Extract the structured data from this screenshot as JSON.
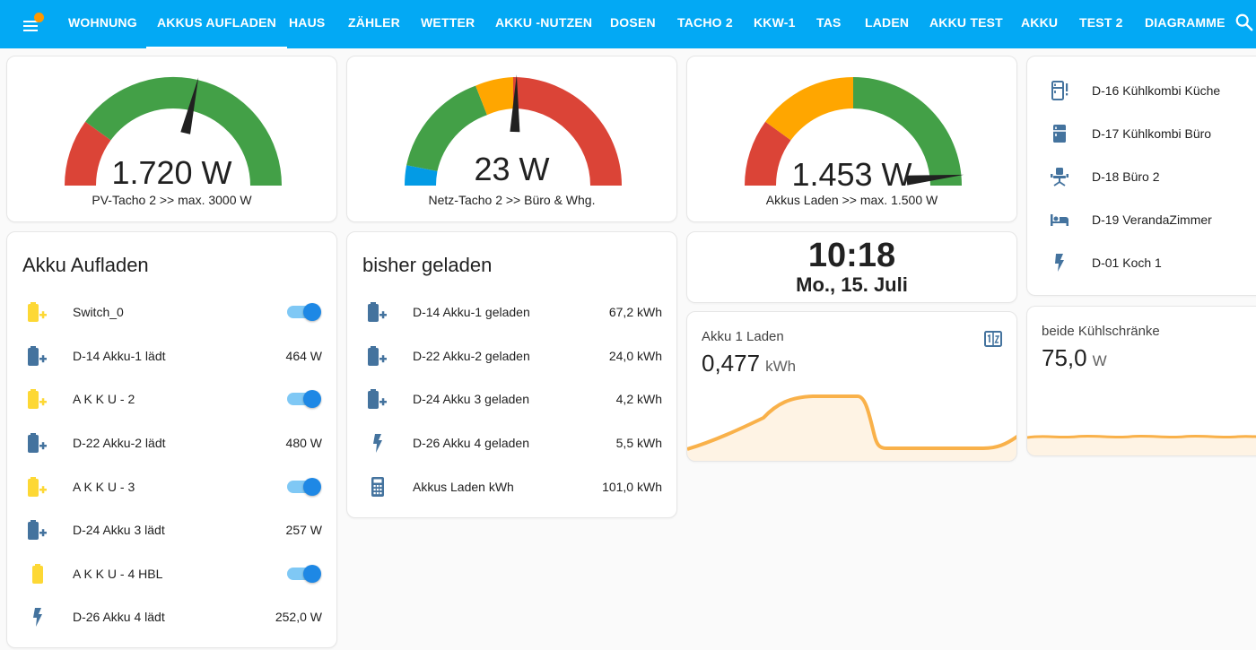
{
  "nav": {
    "tabs": [
      {
        "label": "WOHNUNG"
      },
      {
        "label": "AKKUS AUFLADEN"
      },
      {
        "label": "HAUS"
      },
      {
        "label": "ZÄHLER"
      },
      {
        "label": "WETTER"
      },
      {
        "label": "AKKU -NUTZEN"
      },
      {
        "label": "DOSEN"
      },
      {
        "label": "TACHO 2"
      },
      {
        "label": "KKW-1"
      },
      {
        "label": "TAS"
      },
      {
        "label": "LADEN"
      },
      {
        "label": "AKKU TEST"
      },
      {
        "label": "AKKU"
      },
      {
        "label": "TEST 2"
      },
      {
        "label": "DIAGRAMME"
      }
    ],
    "active_tab": "AKKUS AUFLADEN"
  },
  "gauges": [
    {
      "value": "1.720 W",
      "label": "PV-Tacho 2 >> max. 3000 W",
      "level": 0.573
    },
    {
      "value": "23 W",
      "label": "Netz-Tacho 2 >> Büro & Whg.",
      "level": 0.51
    },
    {
      "value": "1.453 W",
      "label": "Akkus Laden >> max. 1.500 W",
      "level": 0.969
    }
  ],
  "akku_aufladen": {
    "title": "Akku Aufladen",
    "rows": [
      {
        "name": "Switch_0",
        "value": "",
        "state": "on",
        "icon": "battery-charging-icon"
      },
      {
        "name": "D-14 Akku-1 lädt",
        "value": "464 W",
        "icon": "battery-charging-icon"
      },
      {
        "name": "A K K U - 2",
        "value": "",
        "state": "on",
        "icon": "battery-charging-icon"
      },
      {
        "name": "D-22 Akku-2 lädt",
        "value": "480 W",
        "icon": "battery-charging-icon"
      },
      {
        "name": "A K K U - 3",
        "value": "",
        "state": "on",
        "icon": "battery-charging-icon"
      },
      {
        "name": "D-24 Akku 3 lädt",
        "value": "257 W",
        "icon": "battery-charging-icon"
      },
      {
        "name": "A K K U - 4 HBL",
        "value": "",
        "state": "on",
        "icon": "battery-icon"
      },
      {
        "name": "D-26 Akku 4 lädt",
        "value": "252,0 W",
        "icon": "flash-icon"
      }
    ]
  },
  "bisher_geladen": {
    "title": "bisher geladen",
    "rows": [
      {
        "name": "D-14 Akku-1 geladen",
        "value": "67,2 kWh",
        "icon": "battery-charging-icon"
      },
      {
        "name": "D-22 Akku-2 geladen",
        "value": "24,0 kWh",
        "icon": "battery-charging-icon"
      },
      {
        "name": "D-24 Akku 3 geladen",
        "value": "4,2 kWh",
        "icon": "battery-charging-icon"
      },
      {
        "name": "D-26 Akku 4 geladen",
        "value": "5,5 kWh",
        "icon": "flash-icon"
      },
      {
        "name": "Akkus Laden kWh",
        "value": "101,0 kWh",
        "icon": "calculator-icon"
      }
    ]
  },
  "clock": {
    "time": "10:18",
    "date": "Mo., 15. Juli"
  },
  "akku1_laden": {
    "name": "Akku 1 Laden",
    "value": "0,477",
    "unit": "kWh"
  },
  "kuehlschraenke": {
    "name": "beide Kühlschränke",
    "value": "75,0",
    "unit": "W"
  },
  "devices": {
    "rows": [
      {
        "name": "D-16 Kühlkombi Küche",
        "icon": "fridge-alert-icon"
      },
      {
        "name": "D-17 Kühlkombi Büro",
        "icon": "fridge-icon"
      },
      {
        "name": "D-18 Büro 2",
        "icon": "desk-chair-icon"
      },
      {
        "name": "D-19 VerandaZimmer",
        "icon": "bed-icon"
      },
      {
        "name": "D-01 Koch 1",
        "icon": "flash-icon"
      }
    ]
  },
  "colors": {
    "header": "#03a9f4",
    "red": "#db4437",
    "green": "#43a047",
    "amber": "#ffa600",
    "blue": "#039be5",
    "icon_yellow": "#fdd835",
    "icon_blue": "#44739e",
    "graph": "#f9b14a"
  }
}
